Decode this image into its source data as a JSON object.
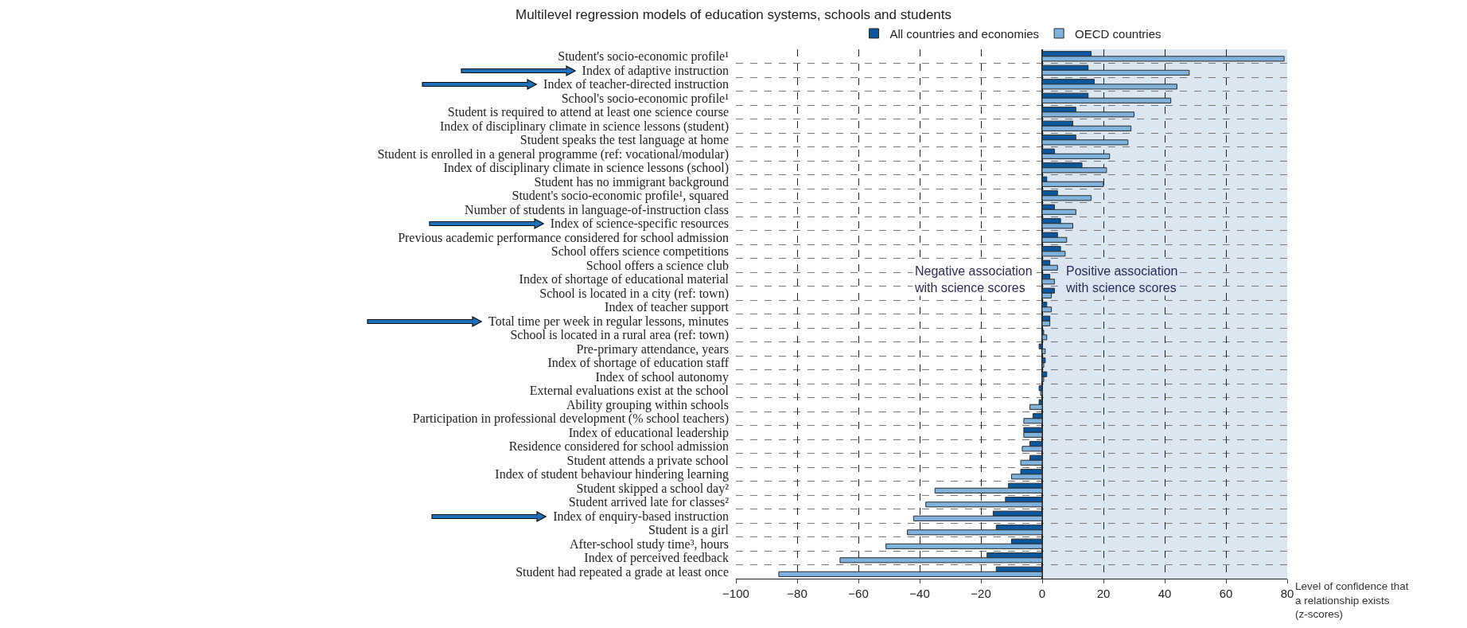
{
  "chart_data": {
    "type": "bar",
    "orientation": "horizontal",
    "title": "Multilevel regression models of education systems, schools and students",
    "xlabel": "Level of confidence that a relationship exists (z-scores)",
    "categories": [
      "Student's socio-economic profile¹",
      "Index of adaptive instruction",
      "Index of teacher-directed instruction",
      "School's socio-economic profile¹",
      "Student is required to attend at least one science course",
      "Index of disciplinary climate in science lessons (student)",
      "Student speaks the test language at home",
      "Student is enrolled in a general programme (ref: vocational/modular)",
      "Index of disciplinary climate in science lessons (school)",
      "Student has no immigrant background",
      "Student's socio-economic profile¹, squared",
      "Number of students in language-of-instruction class",
      "Index of science-specific resources",
      "Previous academic performance considered for school admission",
      "School offers science competitions",
      "School offers a science club",
      "Index of shortage of educational material",
      "School is located in a city (ref: town)",
      "Index of teacher support",
      "Total time per week in regular lessons, minutes",
      "School is located in a rural area (ref: town)",
      "Pre-primary attendance, years",
      "Index of shortage of education staff",
      "Index of school autonomy",
      "External evaluations exist at the school",
      "Ability grouping within schools",
      "Participation in professional development (% school teachers)",
      "Index of educational leadership",
      "Residence considered for school admission",
      "Student attends a private school",
      "Index of student behaviour hindering learning",
      "Student skipped a school day²",
      "Student arrived late for classes²",
      "Index of enquiry-based instruction",
      "Student is a girl",
      "After-school study time³, hours",
      "Index of perceived feedback",
      "Student had repeated a grade at least once"
    ],
    "series": [
      {
        "name": "All countries and economies",
        "color": "#0b579e",
        "values": [
          16,
          15,
          17,
          15,
          11,
          10,
          11,
          4,
          13,
          1.5,
          5,
          4,
          6,
          5,
          6,
          2.5,
          2.5,
          4,
          1.5,
          2.5,
          0.5,
          -1,
          1,
          1.5,
          -1,
          -1,
          -3,
          -6,
          -4,
          -4,
          -7,
          -11,
          -12,
          -16,
          -15,
          -10,
          -18,
          -15
        ]
      },
      {
        "name": "OECD countries",
        "color": "#7fb2dc",
        "values": [
          79,
          48,
          44,
          42,
          30,
          29,
          28,
          22,
          21,
          20,
          16,
          11,
          10,
          8,
          7.5,
          5,
          4,
          3,
          3,
          2.5,
          1.5,
          1,
          0.5,
          0.5,
          -0.5,
          -4,
          -6,
          -6,
          -6.5,
          -7,
          -10,
          -35,
          -38,
          -42,
          -44,
          -51,
          -66,
          -86
        ]
      }
    ],
    "xlim": [
      -100,
      80
    ],
    "xticks": [
      -100,
      -80,
      -60,
      -40,
      -20,
      0,
      20,
      40,
      60,
      80
    ],
    "grid": true,
    "legend": "top",
    "bands": [
      {
        "axis": "x",
        "from": 0,
        "to": 80,
        "color": "#dbe6f1"
      }
    ],
    "annotations": [
      "Negative association with science scores",
      "Positive association with science scores"
    ]
  }
}
